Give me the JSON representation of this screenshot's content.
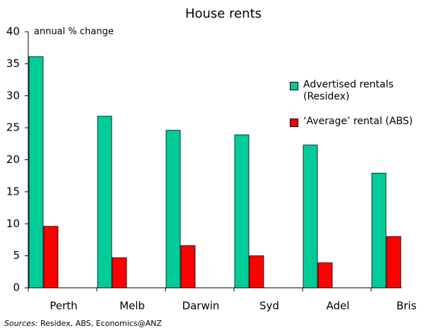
{
  "chart_data": {
    "type": "bar",
    "title": "House rents",
    "y_label": "annual % change",
    "categories": [
      "Perth",
      "Melb",
      "Darwin",
      "Syd",
      "Adel",
      "Bris"
    ],
    "series": [
      {
        "name": "Advertised rentals (Residex)",
        "color": "#00cc99",
        "values": [
          36.1,
          26.8,
          24.6,
          23.9,
          22.3,
          17.9
        ]
      },
      {
        "name": "‘Average’ rental (ABS)",
        "color": "#ff0000",
        "values": [
          9.6,
          4.7,
          6.6,
          5.0,
          3.9,
          8.0
        ]
      }
    ],
    "ylim": [
      0,
      40
    ],
    "yticks": [
      0,
      5,
      10,
      15,
      20,
      25,
      30,
      35,
      40
    ],
    "grid": false,
    "legend": "right",
    "source_label": "Sources:",
    "source": "Residex, ABS, Economics@ANZ"
  }
}
